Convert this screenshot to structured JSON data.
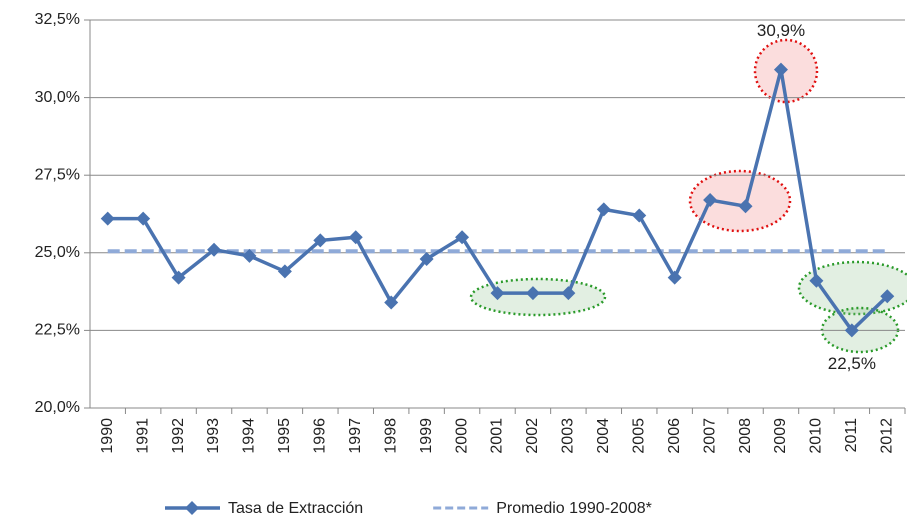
{
  "chart_data": {
    "type": "line",
    "categories": [
      "1990",
      "1991",
      "1992",
      "1993",
      "1994",
      "1995",
      "1996",
      "1997",
      "1998",
      "1999",
      "2000",
      "2001",
      "2002",
      "2003",
      "2004",
      "2005",
      "2006",
      "2007",
      "2008",
      "2009",
      "2010",
      "2011",
      "2012"
    ],
    "series": [
      {
        "name": "Tasa de Extracción",
        "color": "#4a73b0",
        "style": "solid",
        "values": [
          26.1,
          26.1,
          24.2,
          25.1,
          24.9,
          24.4,
          25.4,
          25.5,
          23.4,
          24.8,
          25.5,
          23.7,
          23.7,
          23.7,
          26.4,
          26.2,
          24.2,
          26.7,
          26.5,
          30.9,
          24.1,
          22.5,
          23.6
        ],
        "value_labels": [
          null,
          null,
          null,
          null,
          null,
          null,
          null,
          null,
          null,
          null,
          null,
          null,
          null,
          null,
          null,
          null,
          null,
          null,
          null,
          "30,9%",
          null,
          "22,5%",
          null
        ]
      },
      {
        "name": "Promedio 1990-2008*",
        "color": "#8faad8",
        "style": "dashed",
        "values": [
          25.05,
          25.05,
          25.05,
          25.05,
          25.05,
          25.05,
          25.05,
          25.05,
          25.05,
          25.05,
          25.05,
          25.05,
          25.05,
          25.05,
          25.05,
          25.05,
          25.05,
          25.05,
          25.05,
          25.05,
          25.05,
          25.05,
          25.05
        ]
      }
    ],
    "ylim": [
      20,
      32.5
    ],
    "yticks": [
      {
        "value": 20,
        "label": "20,0%"
      },
      {
        "value": 22.5,
        "label": "22,5%"
      },
      {
        "value": 25,
        "label": "25,0%"
      },
      {
        "value": 27.5,
        "label": "27,5%"
      },
      {
        "value": 30,
        "label": "30,0%"
      },
      {
        "value": 32.5,
        "label": "32,5%"
      }
    ],
    "grid": true
  }
}
